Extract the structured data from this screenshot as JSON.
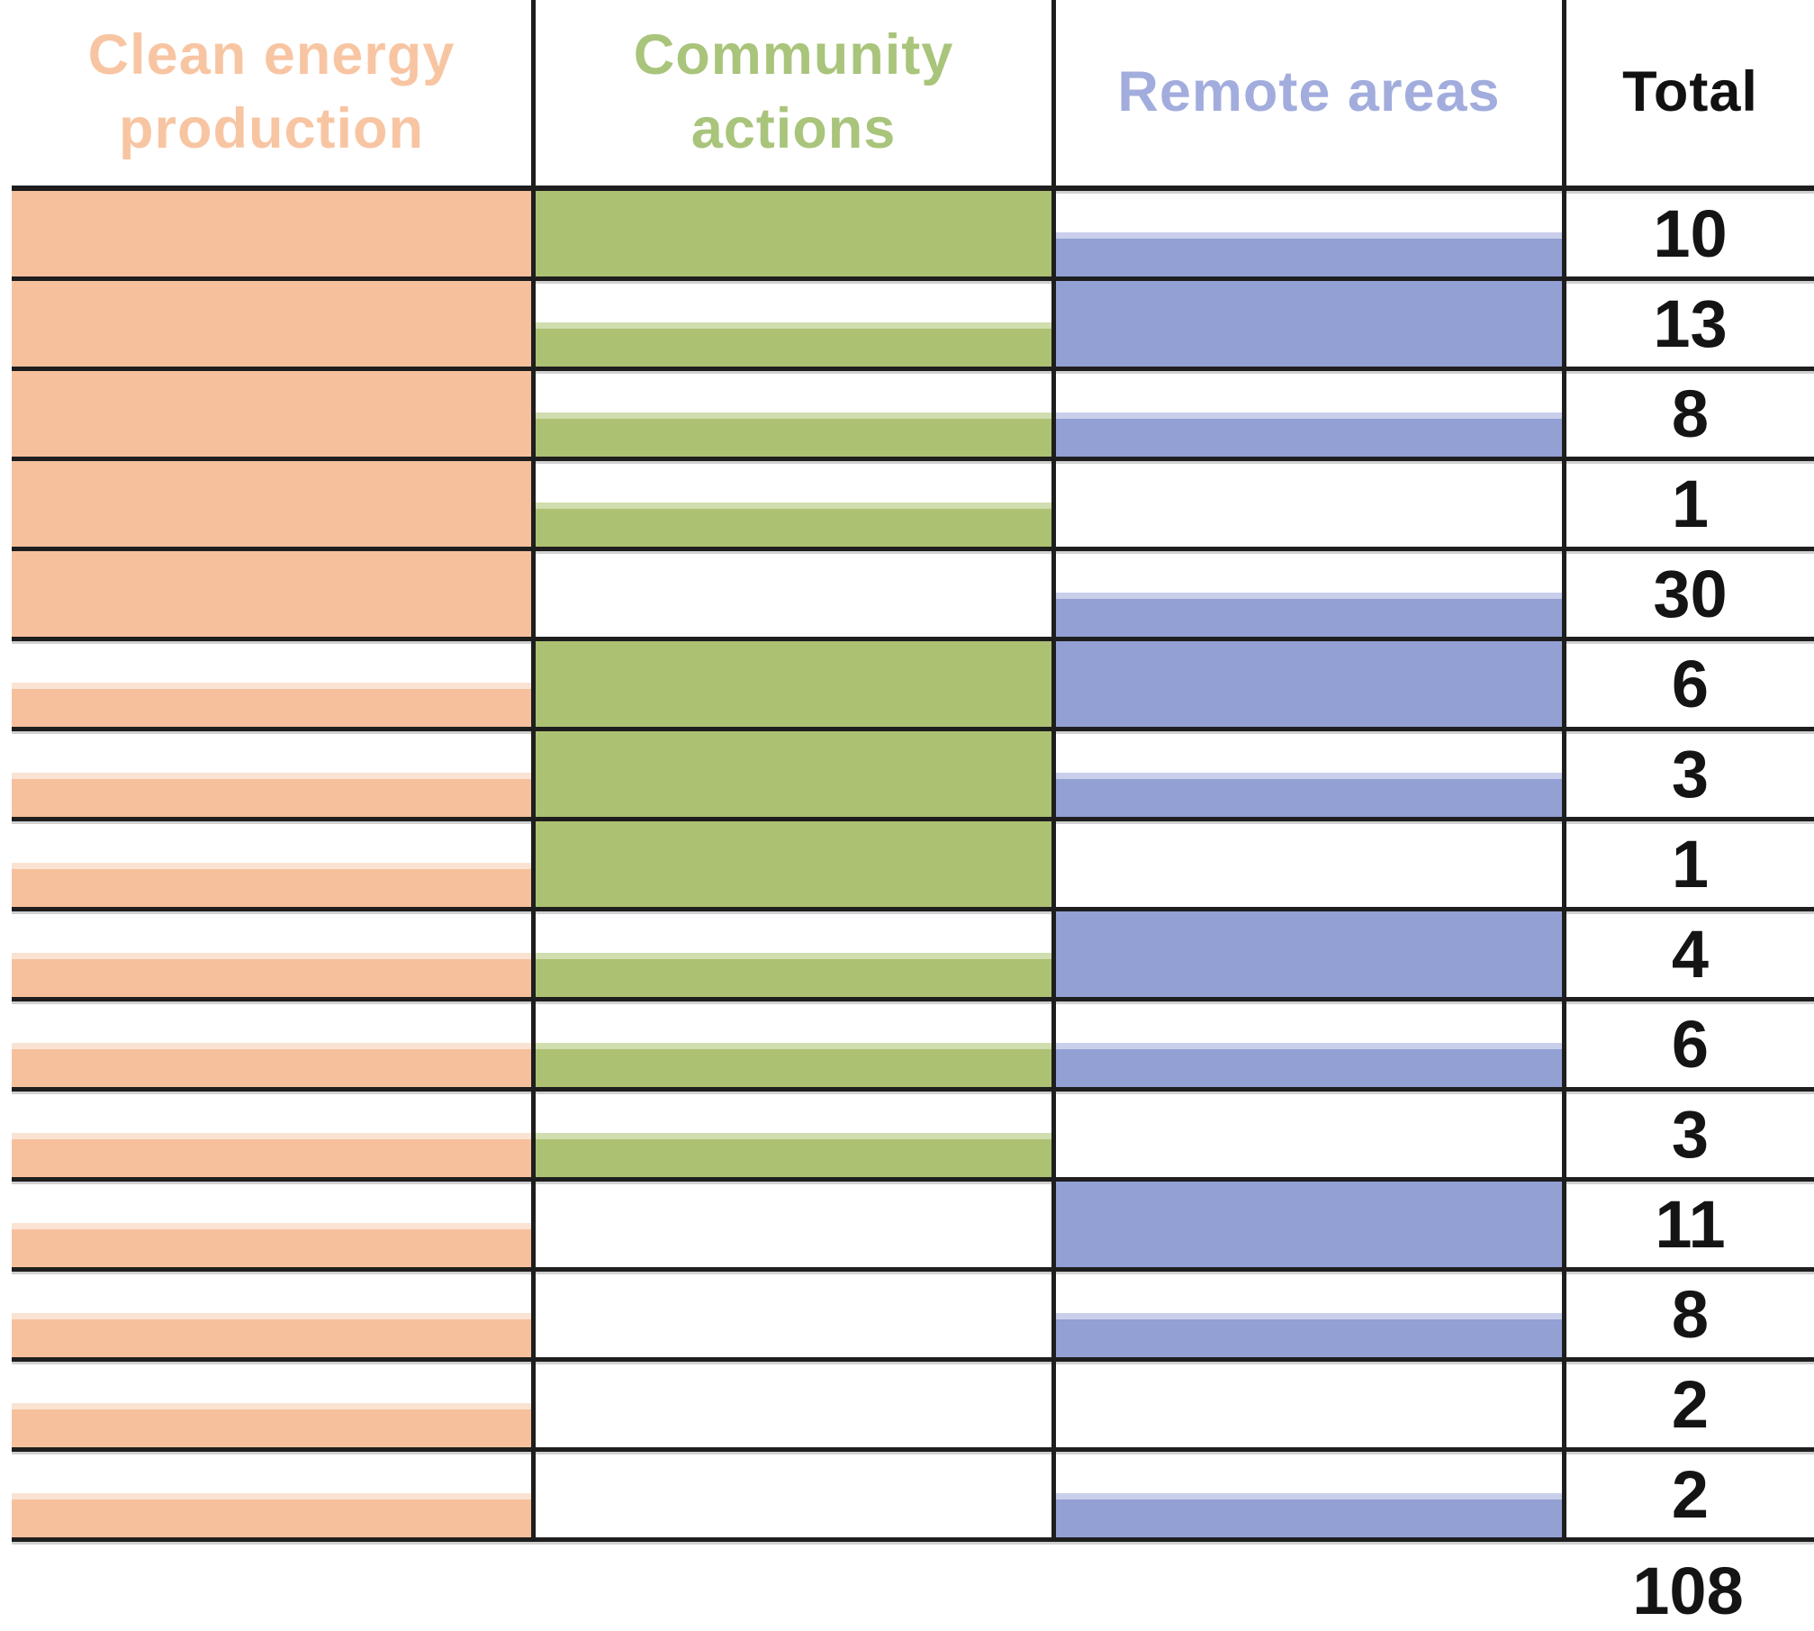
{
  "header": {
    "columns": [
      {
        "id": "clean_energy_production",
        "label": "Clean energy production",
        "text_color": "#f8c5a3"
      },
      {
        "id": "community_actions",
        "label": "Community actions",
        "text_color": "#a9c47b"
      },
      {
        "id": "remote_areas",
        "label": "Remote areas",
        "text_color": "#a2addd"
      },
      {
        "id": "total",
        "label": "Total",
        "text_color": "#111111"
      }
    ]
  },
  "colors": {
    "clean_energy_production": {
      "fill": "#f6c09c",
      "light_edge": "#fae3d2"
    },
    "community_actions": {
      "fill": "#acc172",
      "light_edge": "#d0ddae"
    },
    "remote_areas": {
      "fill": "#92a0d3",
      "light_edge": "#c9cfeb"
    },
    "grid_line": "#1e1e1e",
    "total_text": "#141414"
  },
  "chart_data": {
    "type": "table",
    "categories": [
      "Clean energy production",
      "Community actions",
      "Remote areas"
    ],
    "legend_note": "full = full-height colored bar, half = bottom-aligned half-height bar, none = empty cell",
    "rows": [
      {
        "clean_energy_production": "full",
        "community_actions": "full",
        "remote_areas": "half",
        "total": 10
      },
      {
        "clean_energy_production": "full",
        "community_actions": "half",
        "remote_areas": "full",
        "total": 13
      },
      {
        "clean_energy_production": "full",
        "community_actions": "half",
        "remote_areas": "half",
        "total": 8
      },
      {
        "clean_energy_production": "full",
        "community_actions": "half",
        "remote_areas": "none",
        "total": 1
      },
      {
        "clean_energy_production": "full",
        "community_actions": "none",
        "remote_areas": "half",
        "total": 30
      },
      {
        "clean_energy_production": "half",
        "community_actions": "full",
        "remote_areas": "full",
        "total": 6
      },
      {
        "clean_energy_production": "half",
        "community_actions": "full",
        "remote_areas": "half",
        "total": 3
      },
      {
        "clean_energy_production": "half",
        "community_actions": "full",
        "remote_areas": "none",
        "total": 1
      },
      {
        "clean_energy_production": "half",
        "community_actions": "half",
        "remote_areas": "full",
        "total": 4
      },
      {
        "clean_energy_production": "half",
        "community_actions": "half",
        "remote_areas": "half",
        "total": 6
      },
      {
        "clean_energy_production": "half",
        "community_actions": "half",
        "remote_areas": "none",
        "total": 3
      },
      {
        "clean_energy_production": "half",
        "community_actions": "none",
        "remote_areas": "full",
        "total": 11
      },
      {
        "clean_energy_production": "half",
        "community_actions": "none",
        "remote_areas": "half",
        "total": 8
      },
      {
        "clean_energy_production": "half",
        "community_actions": "none",
        "remote_areas": "none",
        "total": 2
      },
      {
        "clean_energy_production": "half",
        "community_actions": "none",
        "remote_areas": "half",
        "total": 2
      }
    ],
    "grand_total": 108
  }
}
